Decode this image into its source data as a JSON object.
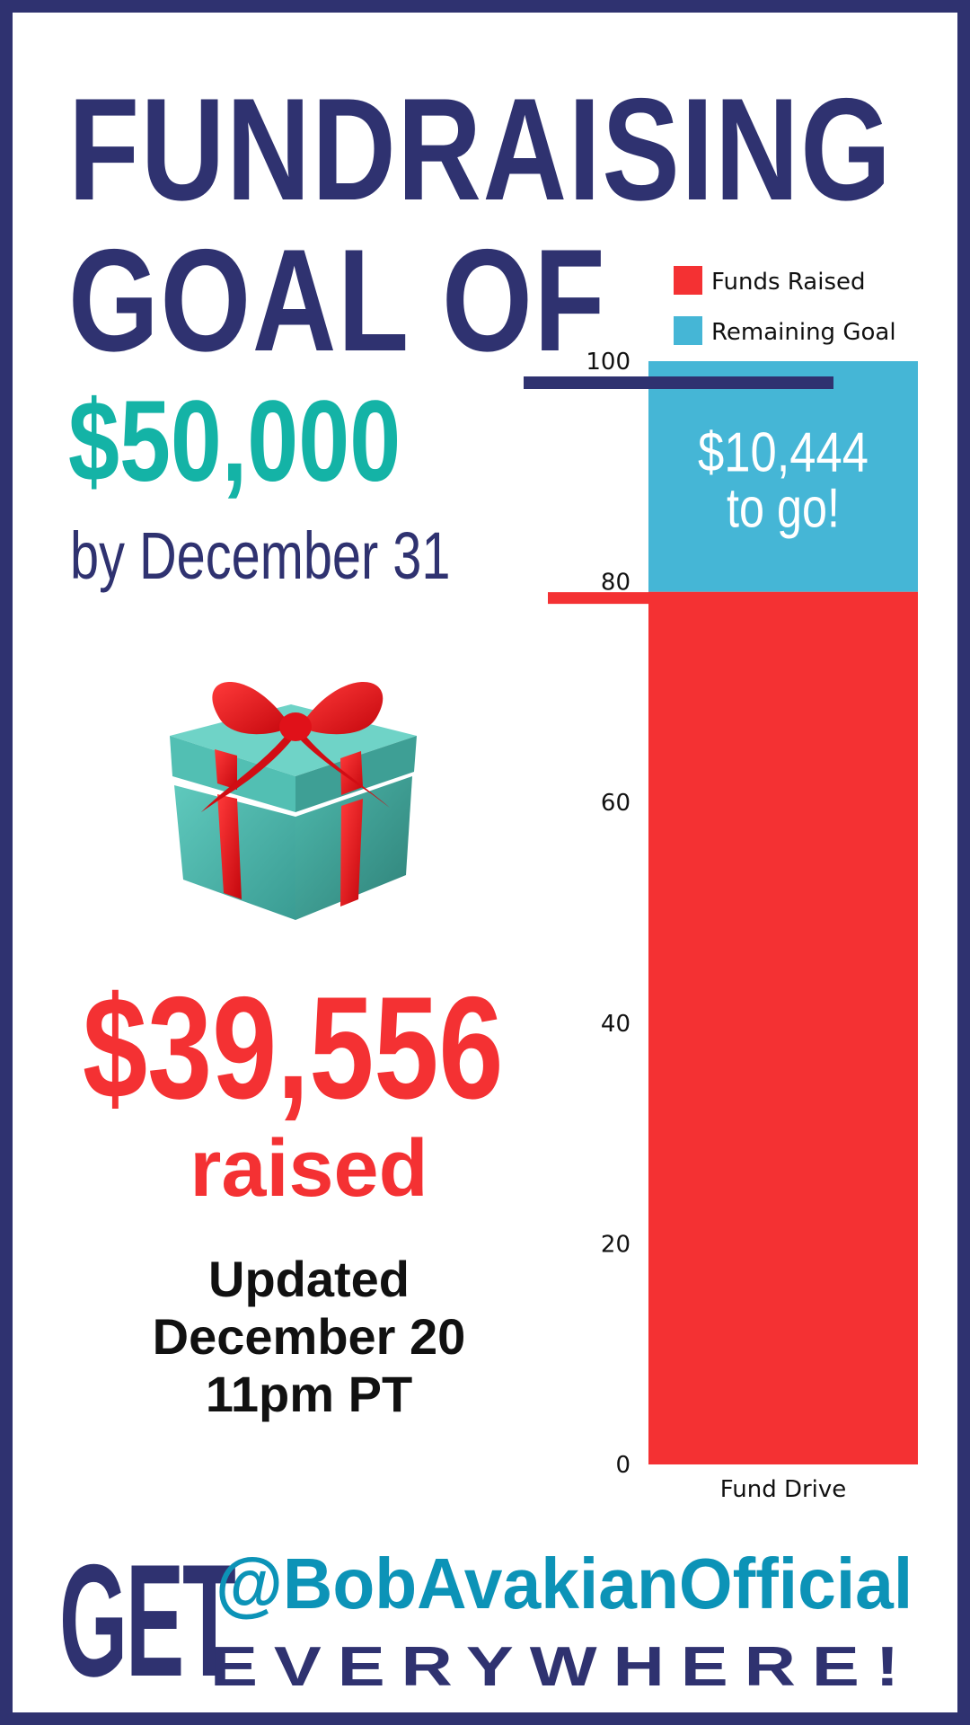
{
  "headline": {
    "line1": "FUNDRAISING",
    "line2": "GOAL OF",
    "goal_amount": "$50,000",
    "deadline": "by December 31"
  },
  "raised": {
    "amount": "$39,556",
    "label": "raised"
  },
  "updated": {
    "line1": "Updated",
    "line2": "December 20",
    "line3": "11pm PT"
  },
  "icon": "gift-icon",
  "footer": {
    "get": "GET",
    "handle": "@BobAvakianOfficial",
    "everywhere": "EVERYWHERE!"
  },
  "colors": {
    "navy": "#2f3270",
    "teal": "#14b3a6",
    "red": "#f43133",
    "sky": "#45b6d6",
    "handle_blue": "#0c93b7"
  },
  "chart_data": {
    "type": "bar",
    "stacked": true,
    "categories": [
      "Fund Drive"
    ],
    "series": [
      {
        "name": "Funds Raised",
        "values": [
          79.1
        ],
        "color": "#f43133"
      },
      {
        "name": "Remaining Goal",
        "values": [
          20.9
        ],
        "color": "#45b6d6"
      }
    ],
    "ylim": [
      0,
      100
    ],
    "yticks": [
      "0",
      "20",
      "40",
      "60",
      "80",
      "100"
    ],
    "legend_position": "top-right",
    "annotations": [
      {
        "text_line1": "$10,444",
        "text_line2": "to go!"
      }
    ],
    "reference_lines": [
      {
        "value": 100,
        "color": "#2f3270"
      },
      {
        "value": 79.1,
        "color": "#f43133"
      }
    ]
  }
}
